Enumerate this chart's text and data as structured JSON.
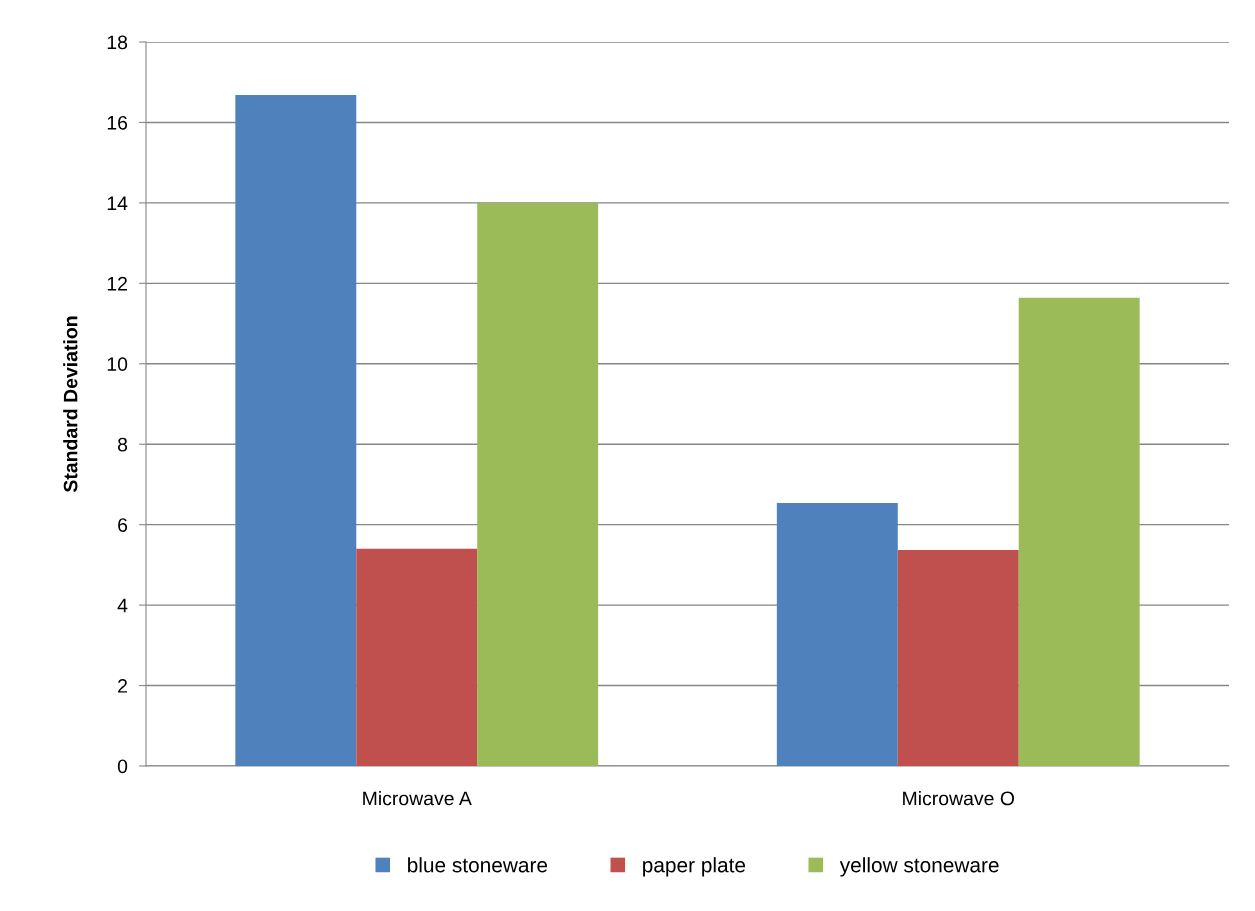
{
  "chart_data": {
    "type": "bar",
    "ylabel": "Standard Deviation",
    "categories": [
      "Microwave A",
      "Microwave O"
    ],
    "series": [
      {
        "name": "blue stoneware",
        "color": "#4f81bd",
        "values": [
          16.68,
          6.54
        ]
      },
      {
        "name": "paper plate",
        "color": "#c0504d",
        "values": [
          5.4,
          5.37
        ]
      },
      {
        "name": "yellow stoneware",
        "color": "#9bbb59",
        "values": [
          14.0,
          11.64
        ]
      }
    ],
    "ylim": [
      0,
      18
    ],
    "yticks": [
      0,
      2,
      4,
      6,
      8,
      10,
      12,
      14,
      16,
      18
    ],
    "grid": "y",
    "legend": "bottom"
  }
}
